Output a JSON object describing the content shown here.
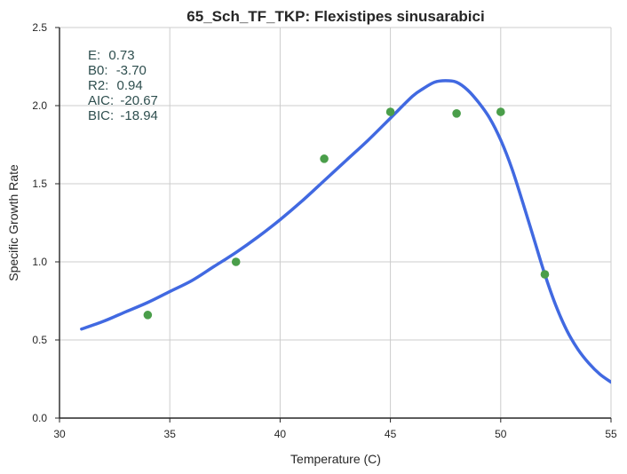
{
  "chart_data": {
    "type": "scatter",
    "title": "65_Sch_TF_TKP: Flexistipes sinusarabici",
    "xlabel": "Temperature (C)",
    "ylabel": "Specific Growth Rate",
    "xlim": [
      30,
      55
    ],
    "ylim": [
      0,
      2.5
    ],
    "xticks": [
      "30",
      "35",
      "40",
      "45",
      "50",
      "55"
    ],
    "yticks": [
      "0.0",
      "0.5",
      "1.0",
      "1.5",
      "2.0",
      "2.5"
    ],
    "grid": true,
    "observed": {
      "x": [
        34,
        38,
        42,
        45,
        48,
        50,
        52
      ],
      "y": [
        0.66,
        1.0,
        1.66,
        1.96,
        1.95,
        1.96,
        0.92
      ],
      "color": "#4a9e4a"
    },
    "fit_curve": {
      "x": [
        31,
        32,
        33,
        34,
        35,
        36,
        37,
        38,
        39,
        40,
        41,
        42,
        43,
        44,
        45,
        46,
        46.5,
        47,
        47.5,
        48,
        48.5,
        49,
        49.5,
        50,
        50.5,
        51,
        51.5,
        52,
        52.5,
        53,
        53.5,
        54,
        54.5,
        55
      ],
      "y": [
        0.57,
        0.62,
        0.68,
        0.74,
        0.81,
        0.88,
        0.97,
        1.06,
        1.16,
        1.27,
        1.39,
        1.52,
        1.65,
        1.78,
        1.92,
        2.06,
        2.11,
        2.15,
        2.16,
        2.15,
        2.1,
        2.02,
        1.92,
        1.78,
        1.6,
        1.38,
        1.15,
        0.92,
        0.72,
        0.56,
        0.44,
        0.35,
        0.28,
        0.23
      ],
      "color": "#4169e1"
    },
    "annotations": [
      {
        "label": "E:",
        "value": "0.73"
      },
      {
        "label": "B0:",
        "value": "-3.70"
      },
      {
        "label": "R2:",
        "value": "0.94"
      },
      {
        "label": "AIC:",
        "value": "-20.67"
      },
      {
        "label": "BIC:",
        "value": "-18.94"
      }
    ],
    "annotation_color": "#2f4f4f",
    "axis_color": "#262626",
    "grid_color": "#cccccc"
  }
}
